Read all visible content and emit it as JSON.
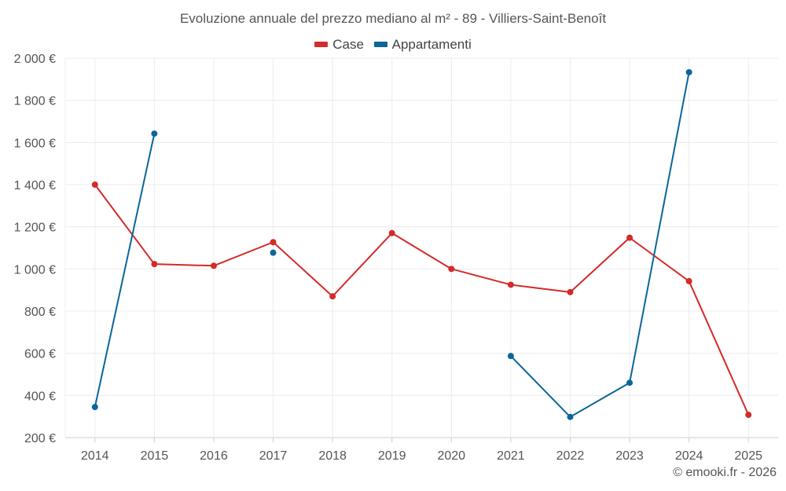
{
  "chart_data": {
    "type": "line",
    "title": "Evoluzione annuale del prezzo mediano al m² - 89 - Villiers-Saint-Benoît",
    "xlabel": "",
    "ylabel": "",
    "x": [
      "2014",
      "2015",
      "2016",
      "2017",
      "2018",
      "2019",
      "2020",
      "2021",
      "2022",
      "2023",
      "2024",
      "2025"
    ],
    "ylim": [
      200,
      2000
    ],
    "yticks": [
      200,
      400,
      600,
      800,
      1000,
      1200,
      1400,
      1600,
      1800,
      2000
    ],
    "ytick_labels": [
      "200 €",
      "400 €",
      "600 €",
      "800 €",
      "1 000 €",
      "1 200 €",
      "1 400 €",
      "1 600 €",
      "1 800 €",
      "2 000 €"
    ],
    "grid": true,
    "legend_position": "top-center",
    "series": [
      {
        "name": "Case",
        "color": "#d42a2a",
        "values": [
          1400,
          1023,
          1015,
          1127,
          870,
          1170,
          1000,
          925,
          890,
          1148,
          942,
          308
        ]
      },
      {
        "name": "Appartamenti",
        "color": "#0b6699",
        "values": [
          345,
          1642,
          null,
          1077,
          null,
          null,
          null,
          587,
          298,
          460,
          1933,
          null
        ]
      }
    ]
  },
  "credit": "© emooki.fr - 2026"
}
